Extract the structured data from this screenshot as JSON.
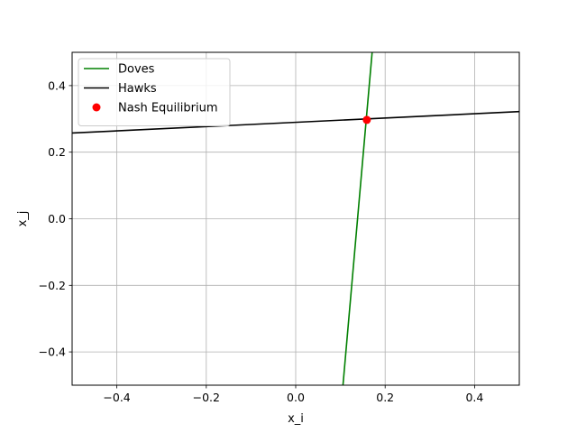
{
  "chart_data": {
    "type": "line",
    "title": "",
    "xlabel": "x_i",
    "ylabel": "x_j",
    "xlim": [
      -0.5,
      0.5
    ],
    "ylim": [
      -0.5,
      0.5
    ],
    "grid": true,
    "legend_position": "top-left",
    "xticks": [
      -0.4,
      -0.2,
      0.0,
      0.2,
      0.4
    ],
    "yticks": [
      -0.4,
      -0.2,
      0.0,
      0.2,
      0.4
    ],
    "xtick_labels": [
      "−0.4",
      "−0.2",
      "0.0",
      "0.2",
      "0.4"
    ],
    "ytick_labels": [
      "−0.4",
      "−0.2",
      "0.0",
      "0.2",
      "0.4"
    ],
    "series": [
      {
        "name": "Doves",
        "kind": "line",
        "color": "#008000",
        "x": [
          0.1057,
          0.1709
        ],
        "y": [
          -0.5,
          0.5
        ]
      },
      {
        "name": "Hawks",
        "kind": "line",
        "color": "#000000",
        "x": [
          -0.5,
          0.5
        ],
        "y": [
          0.2575,
          0.322
        ]
      },
      {
        "name": "Nash Equilibrium",
        "kind": "scatter",
        "color": "#ff0000",
        "x": [
          0.159
        ],
        "y": [
          0.297
        ]
      }
    ]
  }
}
